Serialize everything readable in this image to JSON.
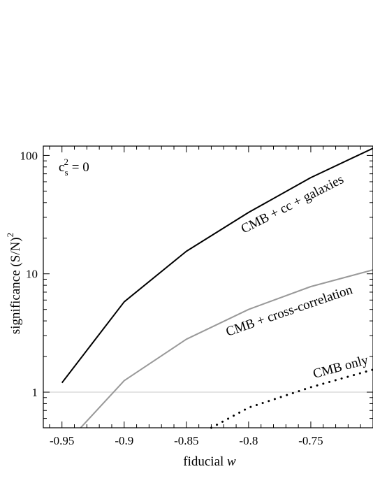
{
  "chart_data": {
    "type": "line",
    "xlabel": "fiducial",
    "xlabel_italic": "w",
    "ylabel": "significance (S/N)",
    "ylabel_sup": "2",
    "yscale": "log",
    "xlim": [
      -0.965,
      -0.7
    ],
    "ylim": [
      0.5,
      120
    ],
    "xticks": [
      -0.95,
      -0.9,
      -0.85,
      -0.8,
      -0.75
    ],
    "xtick_labels": [
      "-0.95",
      "-0.9",
      "-0.85",
      "-0.8",
      "-0.75"
    ],
    "yticks": [
      1,
      10,
      100
    ],
    "ytick_labels": [
      "1",
      "10",
      "100"
    ],
    "reference_line": 1,
    "annotation": {
      "base": "c",
      "sub": "s",
      "sup": "2",
      "rest": " = 0"
    },
    "series": [
      {
        "name": "CMB + cc + galaxies",
        "color": "#000000",
        "style": "solid",
        "x": [
          -0.95,
          -0.9,
          -0.85,
          -0.8,
          -0.75,
          -0.7
        ],
        "y": [
          1.2,
          5.8,
          15.5,
          33,
          65,
          115
        ]
      },
      {
        "name": "CMB + cross-correlation",
        "color": "#999999",
        "style": "solid",
        "x": [
          -0.935,
          -0.9,
          -0.85,
          -0.8,
          -0.75,
          -0.7
        ],
        "y": [
          0.5,
          1.25,
          2.8,
          5.0,
          7.8,
          10.8
        ]
      },
      {
        "name": "CMB only",
        "color": "#000000",
        "style": "dotted",
        "x": [
          -0.83,
          -0.8,
          -0.75,
          -0.7
        ],
        "y": [
          0.5,
          0.74,
          1.1,
          1.55
        ]
      }
    ]
  }
}
